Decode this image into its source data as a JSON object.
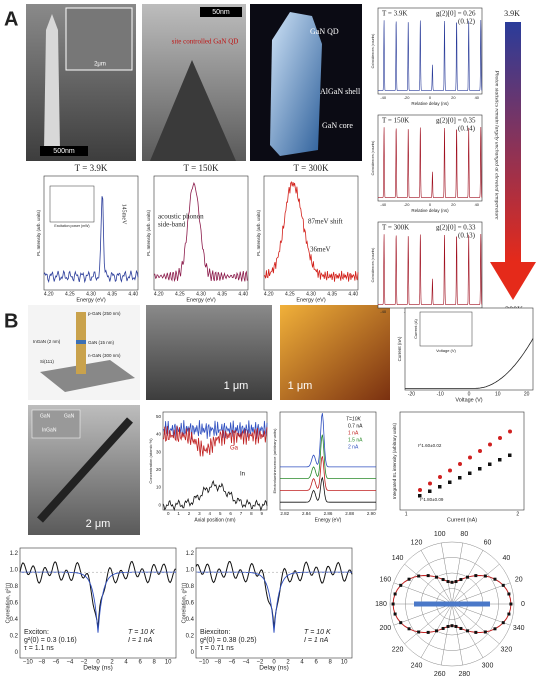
{
  "panel_a": {
    "label": "A",
    "sem": {
      "scale_bar": "500nm",
      "inset_scale_bar": "2μm"
    },
    "tem": {
      "scale_bar": "50nm",
      "annotation": "site controlled GaN QD"
    },
    "render": {
      "labels": [
        "GaN QD",
        "AlGaN shell",
        "GaN core"
      ]
    },
    "spectra": [
      {
        "title": "T = 3.9K",
        "x_label": "Energy (eV)",
        "y_label": "PL Intensity (arb. units)",
        "x_ticks": [
          "4.20",
          "4.25",
          "4.30",
          "4.35",
          "4.40"
        ],
        "annotations": [
          "145meV",
          "Excitation power (mW)"
        ]
      },
      {
        "title": "T = 150K",
        "x_label": "Energy (eV)",
        "y_label": "PL Intensity (arb. units)",
        "x_ticks": [
          "4.20",
          "4.25",
          "4.30",
          "4.35",
          "4.40"
        ],
        "annotations": [
          "acoustic phonon",
          "side-band"
        ]
      },
      {
        "title": "T = 300K",
        "x_label": "Energy (eV)",
        "y_label": "PL Intensity (arb. units)",
        "x_ticks": [
          "4.20",
          "4.25",
          "4.30",
          "4.35",
          "4.40"
        ],
        "annotations": [
          "87meV shift",
          "36meV"
        ]
      }
    ],
    "g2": [
      {
        "temp": "T = 3.9K",
        "value": "g(2)[0] = 0.26",
        "error": "(0.12)",
        "x_label": "Relative delay (ns)",
        "y_label": "Coincidences (counts)",
        "x_ticks": [
          "-40",
          "-20",
          "0",
          "20",
          "40"
        ]
      },
      {
        "temp": "T = 150K",
        "value": "g(2)[0] = 0.35",
        "error": "(0.14)",
        "x_label": "Relative delay (ns)",
        "y_label": "Coincidences (counts)",
        "x_ticks": [
          "-40",
          "-20",
          "0",
          "20",
          "40"
        ]
      },
      {
        "temp": "T = 300K",
        "value": "g(2)[0] = 0.33",
        "error": "(0.13)",
        "x_label": "Relative delay (ns)",
        "y_label": "Coincidences (counts)",
        "x_ticks": [
          "-40",
          "-20",
          "0",
          "20",
          "40"
        ]
      }
    ],
    "arrow": {
      "top": "3.9K",
      "bottom": "300K",
      "caption": "Photon statistics remain largely unchanged at elevated temperature"
    }
  },
  "panel_b": {
    "label": "B",
    "schematic": {
      "labels": [
        "p-GaN (250 nm)",
        "InGaN (2 nm)",
        "GaN (15 nm)",
        "n-GaN (300 nm)",
        "Si(111)"
      ]
    },
    "sem": {
      "scale_bar": "1 μm"
    },
    "afm": {
      "scale_bar": "1 μm"
    },
    "iv": {
      "x_label": "Voltage (V)",
      "y_label": "Current (nA)",
      "x_ticks": [
        "-20",
        "-10",
        "0",
        "10",
        "20"
      ],
      "inset_x_label": "Voltage (V)",
      "inset_y_label": "Current (A)"
    },
    "tem": {
      "scale_bar": "2 μm",
      "labels": [
        "InGaN",
        "GaN",
        "GaN"
      ]
    },
    "concentration": {
      "x_label": "Axial position (nm)",
      "y_label": "Concentration (atomic %)",
      "x_ticks": [
        "0",
        "1",
        "2",
        "3",
        "4",
        "5",
        "6",
        "7",
        "8",
        "9"
      ],
      "y_ticks": [
        "0",
        "10",
        "20",
        "30",
        "40",
        "50"
      ],
      "series": [
        "N",
        "Ga",
        "In"
      ]
    },
    "el": {
      "title": "T=10K",
      "x_label": "Energy (eV)",
      "y_label": "Electroluminescence (arbitrary units)",
      "x_ticks": [
        "2.82",
        "2.84",
        "2.86",
        "2.88",
        "2.90"
      ],
      "series": [
        "0.7 nA",
        "1 nA",
        "1.5 nA",
        "2 nA"
      ]
    },
    "integrated": {
      "x_label": "Current (nA)",
      "y_label": "Integrated EL intensity (arbitrary units)",
      "x_ticks": [
        "1",
        "2"
      ],
      "fits": [
        "I^1.60±0.02",
        "I^1.80±0.09"
      ]
    },
    "correlation": [
      {
        "x_label": "Delay (ns)",
        "y_label": "Correlation, g²(τ)",
        "x_ticks": [
          "−10",
          "−8",
          "−6",
          "−4",
          "−2",
          "0",
          "2",
          "4",
          "6",
          "8",
          "10"
        ],
        "y_ticks": [
          "0",
          "0.2",
          "0.4",
          "0.6",
          "0.8",
          "1.0",
          "1.2"
        ],
        "lines": [
          "Exciton:",
          "g²(0) = 0.3 (0.16)",
          "τ = 1.1 ns"
        ],
        "conditions": [
          "T = 10 K",
          "I = 1 nA"
        ]
      },
      {
        "x_label": "Delay (ns)",
        "y_label": "Correlation, g²(τ)",
        "x_ticks": [
          "−10",
          "−8",
          "−6",
          "−4",
          "−2",
          "0",
          "2",
          "4",
          "6",
          "8",
          "10"
        ],
        "y_ticks": [
          "0",
          "0.2",
          "0.4",
          "0.6",
          "0.8",
          "1.0",
          "1.2"
        ],
        "lines": [
          "Biexciton:",
          "g²(0) = 0.38 (0.25)",
          "τ = 0.71 ns"
        ],
        "conditions": [
          "T = 10 K",
          "I = 1 nA"
        ]
      }
    ],
    "polar": {
      "angles": [
        0,
        20,
        40,
        60,
        80,
        100,
        120,
        140,
        160,
        180,
        200,
        220,
        240,
        260,
        280,
        300,
        320,
        340
      ]
    }
  }
}
